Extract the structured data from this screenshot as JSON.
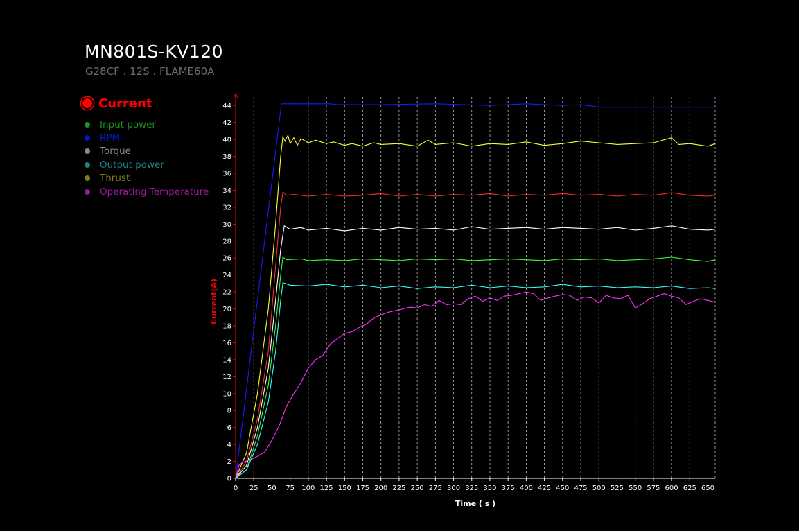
{
  "header": {
    "title": "MN801S-KV120",
    "subtitle": "G28CF . 12S . FLAME60A"
  },
  "legend": {
    "active": {
      "label": "Current",
      "color": "#ff0000"
    },
    "items": [
      {
        "label": "Input power",
        "color": "#1f8f1f"
      },
      {
        "label": "RPM",
        "color": "#0018c8"
      },
      {
        "label": "Torque",
        "color": "#8a8a8a"
      },
      {
        "label": "Output power",
        "color": "#1f8080"
      },
      {
        "label": "Thrust",
        "color": "#7d7d18"
      },
      {
        "label": "Operating Temperature",
        "color": "#9a1a9a"
      }
    ]
  },
  "chart_data": {
    "type": "line",
    "xlabel": "Time ( s )",
    "ylabel": "Current(A)",
    "xlim": [
      0,
      660
    ],
    "ylim": [
      0,
      45
    ],
    "xticks": [
      0,
      25,
      50,
      75,
      100,
      125,
      150,
      175,
      200,
      225,
      250,
      275,
      300,
      325,
      350,
      375,
      400,
      425,
      450,
      475,
      500,
      525,
      550,
      575,
      600,
      625,
      650
    ],
    "yticks": [
      0,
      2,
      4,
      6,
      8,
      10,
      12,
      14,
      16,
      18,
      20,
      22,
      24,
      26,
      28,
      30,
      32,
      34,
      36,
      38,
      40,
      42,
      44
    ],
    "grid": "vertical dashed",
    "series": [
      {
        "color": "#1a1aff",
        "points": [
          [
            0,
            0
          ],
          [
            63,
            44.2
          ],
          [
            130,
            44.2
          ],
          [
            140,
            44.1
          ],
          [
            200,
            44.1
          ],
          [
            275,
            44.2
          ],
          [
            350,
            44.0
          ],
          [
            400,
            44.2
          ],
          [
            450,
            44.0
          ],
          [
            475,
            44.1
          ],
          [
            500,
            43.8
          ],
          [
            660,
            43.8
          ]
        ]
      },
      {
        "color": "#ffff33",
        "points": [
          [
            0,
            0
          ],
          [
            15,
            3
          ],
          [
            30,
            10
          ],
          [
            45,
            20
          ],
          [
            55,
            30
          ],
          [
            62,
            38
          ],
          [
            65,
            40.3
          ],
          [
            68,
            39.8
          ],
          [
            72,
            40.5
          ],
          [
            75,
            39.5
          ],
          [
            80,
            40.2
          ],
          [
            85,
            39.3
          ],
          [
            90,
            40.1
          ],
          [
            100,
            39.6
          ],
          [
            110,
            39.9
          ],
          [
            125,
            39.5
          ],
          [
            135,
            39.7
          ],
          [
            150,
            39.3
          ],
          [
            160,
            39.5
          ],
          [
            175,
            39.2
          ],
          [
            190,
            39.6
          ],
          [
            200,
            39.4
          ],
          [
            225,
            39.5
          ],
          [
            250,
            39.2
          ],
          [
            265,
            39.9
          ],
          [
            275,
            39.4
          ],
          [
            300,
            39.6
          ],
          [
            325,
            39.2
          ],
          [
            350,
            39.5
          ],
          [
            375,
            39.4
          ],
          [
            400,
            39.7
          ],
          [
            425,
            39.3
          ],
          [
            450,
            39.5
          ],
          [
            475,
            39.8
          ],
          [
            500,
            39.6
          ],
          [
            525,
            39.4
          ],
          [
            550,
            39.5
          ],
          [
            575,
            39.6
          ],
          [
            600,
            40.2
          ],
          [
            610,
            39.4
          ],
          [
            625,
            39.5
          ],
          [
            650,
            39.2
          ],
          [
            660,
            39.5
          ]
        ]
      },
      {
        "color": "#ff2a2a",
        "points": [
          [
            0,
            0
          ],
          [
            15,
            2
          ],
          [
            30,
            7
          ],
          [
            45,
            15
          ],
          [
            55,
            25
          ],
          [
            62,
            32
          ],
          [
            65,
            33.8
          ],
          [
            70,
            33.4
          ],
          [
            80,
            33.5
          ],
          [
            100,
            33.3
          ],
          [
            125,
            33.5
          ],
          [
            150,
            33.3
          ],
          [
            175,
            33.4
          ],
          [
            200,
            33.6
          ],
          [
            225,
            33.3
          ],
          [
            250,
            33.5
          ],
          [
            275,
            33.3
          ],
          [
            300,
            33.5
          ],
          [
            325,
            33.4
          ],
          [
            350,
            33.6
          ],
          [
            375,
            33.3
          ],
          [
            400,
            33.5
          ],
          [
            425,
            33.4
          ],
          [
            450,
            33.6
          ],
          [
            475,
            33.4
          ],
          [
            500,
            33.5
          ],
          [
            525,
            33.3
          ],
          [
            550,
            33.5
          ],
          [
            575,
            33.4
          ],
          [
            600,
            33.7
          ],
          [
            625,
            33.4
          ],
          [
            650,
            33.3
          ],
          [
            660,
            33.4
          ]
        ]
      },
      {
        "color": "#ffffff",
        "points": [
          [
            0,
            0
          ],
          [
            15,
            1.5
          ],
          [
            30,
            6
          ],
          [
            45,
            13
          ],
          [
            55,
            21
          ],
          [
            62,
            27
          ],
          [
            67,
            29.8
          ],
          [
            75,
            29.4
          ],
          [
            90,
            29.6
          ],
          [
            100,
            29.3
          ],
          [
            125,
            29.5
          ],
          [
            150,
            29.2
          ],
          [
            175,
            29.5
          ],
          [
            200,
            29.3
          ],
          [
            225,
            29.6
          ],
          [
            250,
            29.4
          ],
          [
            275,
            29.5
          ],
          [
            300,
            29.3
          ],
          [
            325,
            29.7
          ],
          [
            350,
            29.4
          ],
          [
            375,
            29.5
          ],
          [
            400,
            29.6
          ],
          [
            425,
            29.4
          ],
          [
            450,
            29.6
          ],
          [
            475,
            29.5
          ],
          [
            500,
            29.4
          ],
          [
            525,
            29.6
          ],
          [
            550,
            29.3
          ],
          [
            575,
            29.5
          ],
          [
            600,
            29.8
          ],
          [
            625,
            29.4
          ],
          [
            650,
            29.3
          ],
          [
            660,
            29.4
          ]
        ]
      },
      {
        "color": "#33ff33",
        "points": [
          [
            0,
            0
          ],
          [
            15,
            1
          ],
          [
            30,
            5
          ],
          [
            45,
            11
          ],
          [
            55,
            18
          ],
          [
            62,
            24
          ],
          [
            65,
            26.1
          ],
          [
            70,
            25.8
          ],
          [
            90,
            25.9
          ],
          [
            100,
            25.7
          ],
          [
            125,
            25.8
          ],
          [
            150,
            25.7
          ],
          [
            175,
            25.9
          ],
          [
            200,
            25.8
          ],
          [
            225,
            25.7
          ],
          [
            250,
            25.9
          ],
          [
            275,
            25.8
          ],
          [
            300,
            25.9
          ],
          [
            325,
            25.7
          ],
          [
            350,
            25.8
          ],
          [
            375,
            25.9
          ],
          [
            400,
            25.8
          ],
          [
            425,
            25.7
          ],
          [
            450,
            25.9
          ],
          [
            475,
            25.8
          ],
          [
            500,
            25.9
          ],
          [
            525,
            25.7
          ],
          [
            550,
            25.8
          ],
          [
            575,
            25.9
          ],
          [
            600,
            26.1
          ],
          [
            625,
            25.8
          ],
          [
            650,
            25.6
          ],
          [
            660,
            25.8
          ]
        ]
      },
      {
        "color": "#33ffff",
        "points": [
          [
            0,
            0
          ],
          [
            15,
            1
          ],
          [
            30,
            4
          ],
          [
            45,
            9
          ],
          [
            55,
            15
          ],
          [
            62,
            21
          ],
          [
            65,
            23.1
          ],
          [
            75,
            22.8
          ],
          [
            100,
            22.7
          ],
          [
            125,
            22.9
          ],
          [
            150,
            22.6
          ],
          [
            175,
            22.8
          ],
          [
            200,
            22.5
          ],
          [
            225,
            22.7
          ],
          [
            250,
            22.4
          ],
          [
            275,
            22.6
          ],
          [
            300,
            22.5
          ],
          [
            325,
            22.8
          ],
          [
            350,
            22.5
          ],
          [
            375,
            22.7
          ],
          [
            400,
            22.5
          ],
          [
            425,
            22.6
          ],
          [
            450,
            22.9
          ],
          [
            475,
            22.6
          ],
          [
            500,
            22.7
          ],
          [
            525,
            22.5
          ],
          [
            550,
            22.6
          ],
          [
            575,
            22.5
          ],
          [
            600,
            22.7
          ],
          [
            625,
            22.4
          ],
          [
            650,
            22.5
          ],
          [
            660,
            22.4
          ]
        ]
      },
      {
        "color": "#ff33ff",
        "points": [
          [
            0,
            0
          ],
          [
            5,
            1.6
          ],
          [
            10,
            1.9
          ],
          [
            20,
            2.2
          ],
          [
            30,
            2.6
          ],
          [
            40,
            3.1
          ],
          [
            50,
            4.5
          ],
          [
            60,
            6.2
          ],
          [
            70,
            8.5
          ],
          [
            80,
            10
          ],
          [
            90,
            11.3
          ],
          [
            100,
            13
          ],
          [
            110,
            14
          ],
          [
            120,
            14.5
          ],
          [
            130,
            15.8
          ],
          [
            140,
            16.5
          ],
          [
            150,
            17.1
          ],
          [
            160,
            17.3
          ],
          [
            170,
            17.8
          ],
          [
            180,
            18.2
          ],
          [
            190,
            18.9
          ],
          [
            200,
            19.3
          ],
          [
            210,
            19.6
          ],
          [
            220,
            19.8
          ],
          [
            230,
            20.0
          ],
          [
            240,
            20.2
          ],
          [
            250,
            20.1
          ],
          [
            260,
            20.5
          ],
          [
            270,
            20.3
          ],
          [
            280,
            21.0
          ],
          [
            290,
            20.5
          ],
          [
            300,
            20.6
          ],
          [
            310,
            20.5
          ],
          [
            320,
            21.2
          ],
          [
            330,
            21.5
          ],
          [
            340,
            20.9
          ],
          [
            350,
            21.3
          ],
          [
            360,
            21.0
          ],
          [
            370,
            21.5
          ],
          [
            380,
            21.6
          ],
          [
            390,
            21.8
          ],
          [
            400,
            22.0
          ],
          [
            410,
            21.8
          ],
          [
            420,
            21.0
          ],
          [
            430,
            21.3
          ],
          [
            440,
            21.5
          ],
          [
            450,
            21.7
          ],
          [
            460,
            21.6
          ],
          [
            470,
            21.0
          ],
          [
            480,
            21.4
          ],
          [
            490,
            21.3
          ],
          [
            500,
            20.7
          ],
          [
            510,
            21.6
          ],
          [
            520,
            21.3
          ],
          [
            530,
            21.2
          ],
          [
            540,
            21.6
          ],
          [
            550,
            20.1
          ],
          [
            560,
            20.6
          ],
          [
            570,
            21.2
          ],
          [
            580,
            21.5
          ],
          [
            590,
            21.8
          ],
          [
            600,
            21.5
          ],
          [
            610,
            21.3
          ],
          [
            620,
            20.5
          ],
          [
            630,
            20.9
          ],
          [
            640,
            21.2
          ],
          [
            650,
            21.0
          ],
          [
            660,
            20.8
          ]
        ]
      }
    ]
  }
}
